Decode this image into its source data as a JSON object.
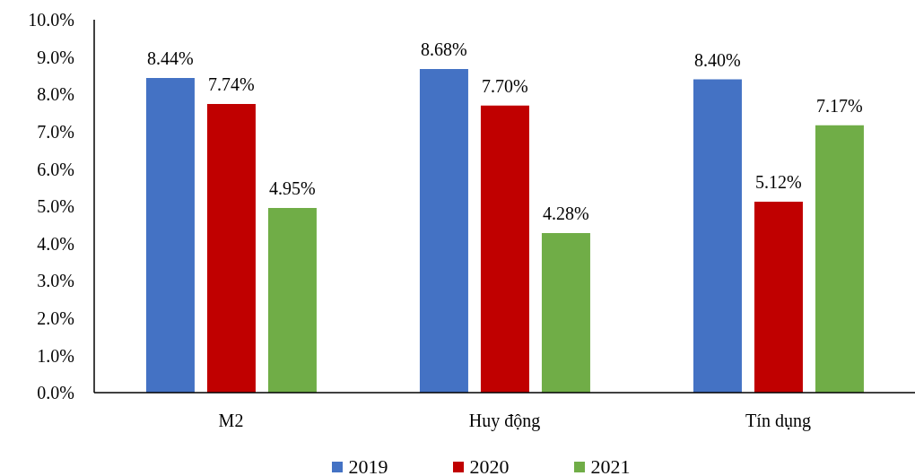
{
  "chart_data": {
    "type": "bar",
    "categories": [
      "M2",
      "Huy động",
      "Tín dụng"
    ],
    "series": [
      {
        "name": "2019",
        "color": "#4472c4",
        "values": [
          8.44,
          8.68,
          8.4
        ],
        "value_labels": [
          "8.44%",
          "8.68%",
          "8.40%"
        ]
      },
      {
        "name": "2020",
        "color": "#c00000",
        "values": [
          7.74,
          7.7,
          5.12
        ],
        "value_labels": [
          "7.74%",
          "7.70%",
          "5.12%"
        ]
      },
      {
        "name": "2021",
        "color": "#70ad47",
        "values": [
          4.95,
          4.28,
          7.17
        ],
        "value_labels": [
          "4.95%",
          "4.28%",
          "7.17%"
        ]
      }
    ],
    "ylim": [
      0,
      10
    ],
    "yticks": [
      {
        "value": 0,
        "label": "0.0%"
      },
      {
        "value": 1,
        "label": "1.0%"
      },
      {
        "value": 2,
        "label": "2.0%"
      },
      {
        "value": 3,
        "label": "3.0%"
      },
      {
        "value": 4,
        "label": "4.0%"
      },
      {
        "value": 5,
        "label": "5.0%"
      },
      {
        "value": 6,
        "label": "6.0%"
      },
      {
        "value": 7,
        "label": "7.0%"
      },
      {
        "value": 8,
        "label": "8.0%"
      },
      {
        "value": 9,
        "label": "9.0%"
      },
      {
        "value": 10,
        "label": "10.0%"
      }
    ],
    "legend": "bottom"
  }
}
